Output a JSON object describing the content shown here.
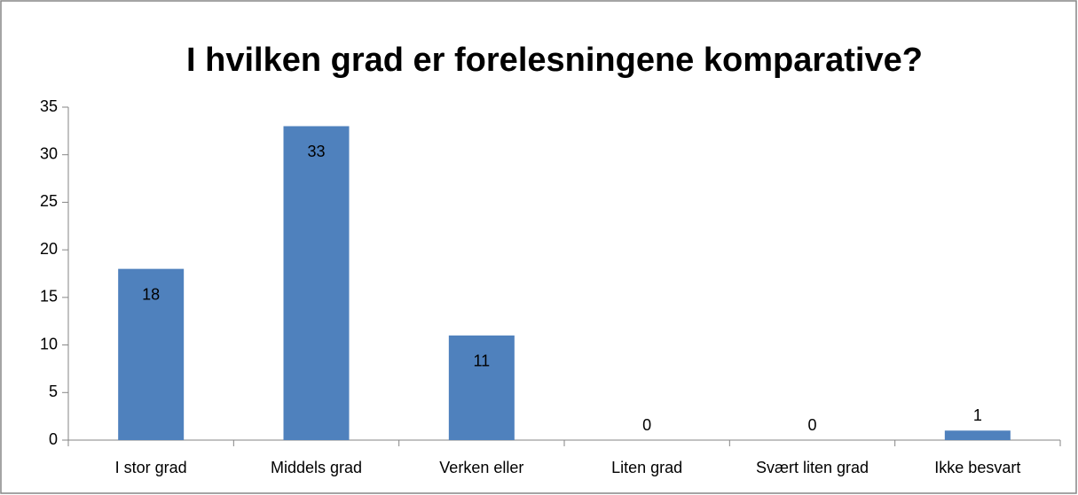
{
  "chart_data": {
    "type": "bar",
    "title": "I hvilken grad er forelesningene komparative?",
    "categories": [
      "I stor grad",
      "Middels grad",
      "Verken eller",
      "Liten grad",
      "Svært liten grad",
      "Ikke besvart"
    ],
    "values": [
      18,
      33,
      11,
      0,
      0,
      1
    ],
    "color": "#4f81bd",
    "ylim": [
      0,
      35
    ],
    "yticks": [
      0,
      5,
      10,
      15,
      20,
      25,
      30,
      35
    ],
    "grid": false
  }
}
